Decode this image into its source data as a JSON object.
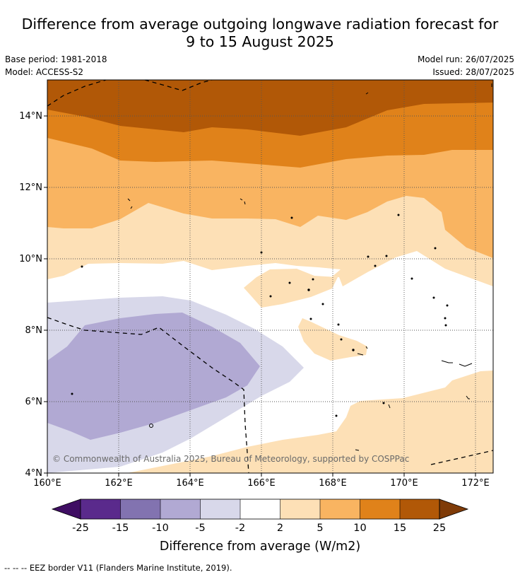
{
  "title": {
    "line1": "Difference from average outgoing longwave radiation forecast for",
    "line2": "9 to 15 August 2025"
  },
  "meta": {
    "base_period": "Base period: 1981-2018",
    "model": "Model: ACCESS-S2",
    "model_run": "Model run: 26/07/2025",
    "issued": "Issued: 28/07/2025"
  },
  "map": {
    "lat_labels": [
      "14°N",
      "12°N",
      "10°N",
      "8°N",
      "6°N",
      "4°N"
    ],
    "lon_labels": [
      "160°E",
      "162°E",
      "164°E",
      "166°E",
      "168°E",
      "170°E",
      "172°E"
    ],
    "copyright": "© Commonwealth of Australia 2025, Bureau of Meteorology, supported by COSPPac"
  },
  "colorbar": {
    "labels": [
      "-25",
      "-15",
      "-10",
      "-5",
      "-2",
      "2",
      "5",
      "10",
      "15",
      "25"
    ],
    "colors": [
      "#3f0e63",
      "#5a2a8c",
      "#8273b0",
      "#b1a9d3",
      "#d8d8ea",
      "#ffffff",
      "#fde0b6",
      "#f9b461",
      "#e0821a",
      "#b15807",
      "#7f3b08"
    ],
    "label": "Difference from average (W/m2)"
  },
  "footnote": "--  --  -- EEZ border V11 (Flanders Marine Institute, 2019)."
}
